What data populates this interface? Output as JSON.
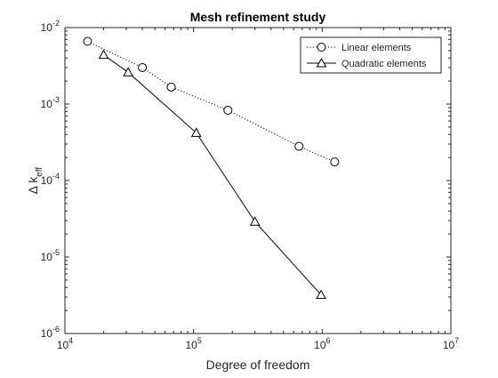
{
  "colors": {
    "background": "#ffffff",
    "axes": "#262626",
    "series": "#000000"
  },
  "chart_data": {
    "type": "line",
    "title": "Mesh refinement study",
    "xlabel": "Degree of freedom",
    "ylabel": "Δ k_eff",
    "xscale": "log",
    "yscale": "log",
    "xlim": [
      10000,
      10000000
    ],
    "ylim": [
      1e-06,
      0.01
    ],
    "grid": false,
    "legend_position": "top-right",
    "x_ticks": [
      {
        "value": 10000,
        "base": "10",
        "exp": "4"
      },
      {
        "value": 100000,
        "base": "10",
        "exp": "5"
      },
      {
        "value": 1000000,
        "base": "10",
        "exp": "6"
      },
      {
        "value": 10000000,
        "base": "10",
        "exp": "7"
      }
    ],
    "y_ticks": [
      {
        "value": 1e-06,
        "base": "10",
        "exp": "-6"
      },
      {
        "value": 1e-05,
        "base": "10",
        "exp": "-5"
      },
      {
        "value": 0.0001,
        "base": "10",
        "exp": "-4"
      },
      {
        "value": 0.001,
        "base": "10",
        "exp": "-3"
      },
      {
        "value": 0.01,
        "base": "10",
        "exp": "-2"
      }
    ],
    "series": [
      {
        "name": "Linear elements",
        "marker": "circle",
        "line": "dotted",
        "x": [
          15000,
          40000,
          67000,
          185000,
          660000,
          1250000
        ],
        "y": [
          0.0066,
          0.003,
          0.00167,
          0.00083,
          0.00028,
          0.000175
        ]
      },
      {
        "name": "Quadratic elements",
        "marker": "triangle",
        "line": "solid",
        "x": [
          20000,
          31000,
          105000,
          300000,
          980000
        ],
        "y": [
          0.0044,
          0.0026,
          0.00042,
          2.9e-05,
          3.2e-06
        ]
      }
    ]
  }
}
